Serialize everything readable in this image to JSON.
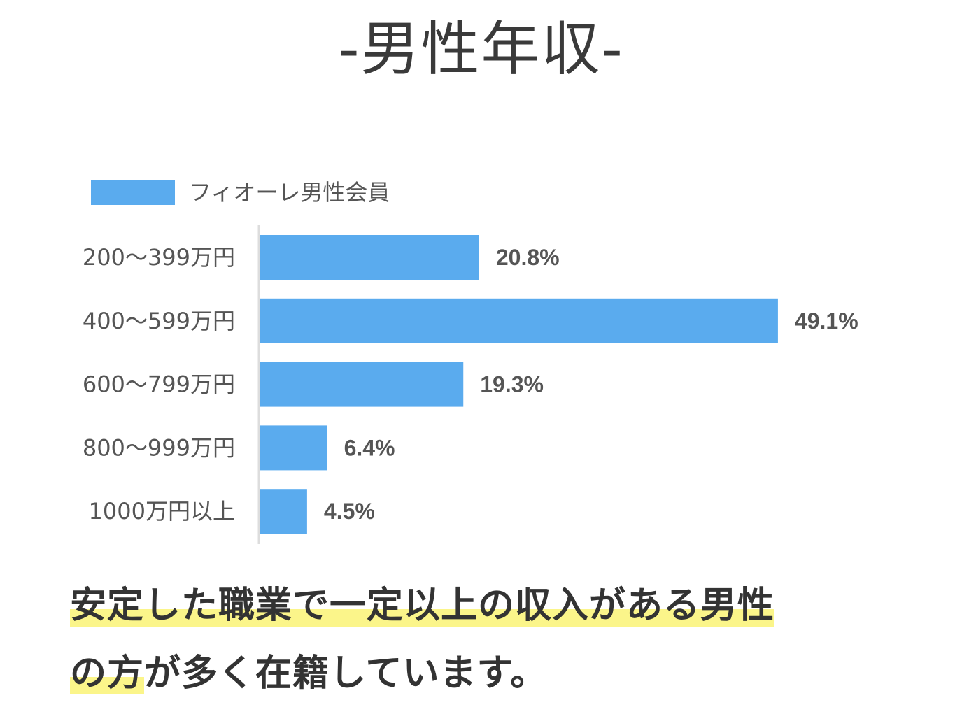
{
  "title": "-男性年収-",
  "colors": {
    "bar": "#5aabee",
    "label_text": "#555555",
    "value_text": "#555555",
    "axis": "#dddddd",
    "highlight": "#fbf58a",
    "title_text": "#3a3a3a",
    "caption_text": "#333333"
  },
  "chart_data": {
    "type": "bar",
    "orientation": "horizontal",
    "categories": [
      "200〜399万円",
      "400〜599万円",
      "600〜799万円",
      "800〜999万円",
      "1000万円以上"
    ],
    "series": [
      {
        "name": "フィオーレ男性会員",
        "values": [
          20.8,
          49.1,
          19.3,
          6.4,
          4.5
        ],
        "labels": [
          "20.8%",
          "49.1%",
          "19.3%",
          "6.4%",
          "4.5%"
        ]
      }
    ],
    "legend": "top-left",
    "grid": false,
    "xlim": [
      0,
      55
    ]
  },
  "caption": {
    "line1": "安定した職業で一定以上の収入がある男性",
    "line2_highlight": "の方",
    "line2_rest": "が多く在籍しています。"
  }
}
